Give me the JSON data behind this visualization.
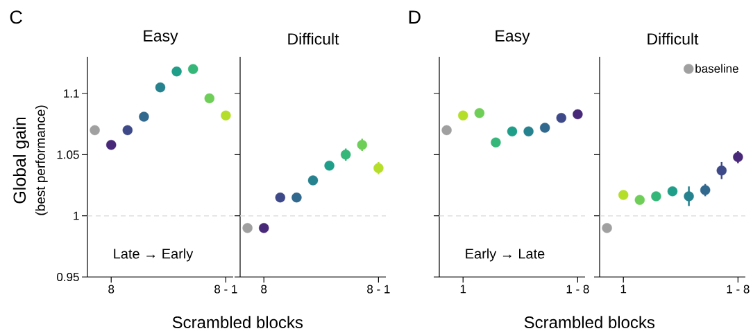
{
  "chart_data": [
    {
      "type": "scatter",
      "title": "Easy",
      "xlabel": "Scrambled blocks",
      "ylabel": "Global gain",
      "annotations": [
        "C",
        "Late → Early",
        "(best performance)"
      ],
      "categories": [
        null,
        "8",
        null,
        null,
        null,
        null,
        null,
        null,
        "8 - 1"
      ],
      "ylim": [
        0.95,
        1.13
      ],
      "yticks": [
        0.95,
        1,
        1.05,
        1.1
      ],
      "ref_lines": [
        {
          "axis": "y",
          "value": 1,
          "color": "#dddddd",
          "line_style": "dashed"
        }
      ],
      "series": [
        {
          "color": "#a0a0a0",
          "values": [
            1.07,
            null,
            null,
            null,
            null,
            null,
            null,
            null,
            null
          ]
        },
        {
          "colors": [
            "#482878",
            "#482878",
            "#3e4989",
            "#31688e",
            "#26828e",
            "#1f9e89",
            "#35b779",
            "#6ece58",
            "#b5de2b"
          ],
          "values": [
            null,
            1.058,
            1.07,
            1.081,
            1.105,
            1.118,
            1.12,
            1.096,
            1.082
          ]
        }
      ]
    },
    {
      "type": "scatter",
      "title": "Difficult",
      "categories": [
        null,
        "8",
        null,
        null,
        null,
        null,
        null,
        null,
        "8 - 1"
      ],
      "ylim": [
        0.95,
        1.13
      ],
      "yticks": [
        0.95,
        1,
        1.05,
        1.1
      ],
      "tick_labels": "x",
      "ref_lines": [
        {
          "axis": "y",
          "value": 1,
          "color": "#dddddd",
          "line_style": "dashed"
        }
      ],
      "series": [
        {
          "color": "#a0a0a0",
          "values": [
            0.99,
            null,
            null,
            null,
            null,
            null,
            null,
            null,
            null
          ]
        },
        {
          "colors": [
            "#482878",
            "#482878",
            "#3e4989",
            "#31688e",
            "#26828e",
            "#1f9e89",
            "#35b779",
            "#6ece58",
            "#b5de2b"
          ],
          "values": [
            null,
            0.99,
            1.015,
            1.015,
            1.029,
            1.041,
            1.05,
            1.058,
            1.039
          ],
          "errors": [
            null,
            null,
            null,
            null,
            null,
            null,
            0.005,
            0.005,
            0.005
          ]
        }
      ]
    },
    {
      "type": "scatter",
      "title": "Easy",
      "xlabel": "Scrambled blocks",
      "annotations": [
        "D",
        "Early → Late"
      ],
      "categories": [
        null,
        "1",
        null,
        null,
        null,
        null,
        null,
        null,
        "1 - 8"
      ],
      "ylim": [
        0.95,
        1.13
      ],
      "yticks": [
        0.95,
        1,
        1.05,
        1.1
      ],
      "tick_labels": "x",
      "ref_lines": [
        {
          "axis": "y",
          "value": 1,
          "color": "#dddddd",
          "line_style": "dashed"
        }
      ],
      "series": [
        {
          "color": "#a0a0a0",
          "values": [
            1.07,
            null,
            null,
            null,
            null,
            null,
            null,
            null,
            null
          ]
        },
        {
          "colors": [
            "#b5de2b",
            "#b5de2b",
            "#6ece58",
            "#35b779",
            "#1f9e89",
            "#26828e",
            "#31688e",
            "#3e4989",
            "#482878"
          ],
          "values": [
            null,
            1.082,
            1.084,
            1.06,
            1.069,
            1.069,
            1.072,
            1.08,
            1.083
          ]
        }
      ]
    },
    {
      "type": "scatter",
      "title": "Difficult",
      "categories": [
        null,
        "1",
        null,
        null,
        null,
        null,
        null,
        null,
        "1 - 8"
      ],
      "ylim": [
        0.95,
        1.13
      ],
      "yticks": [
        0.95,
        1,
        1.05,
        1.1
      ],
      "tick_labels": "x",
      "legend": "top right",
      "ref_lines": [
        {
          "axis": "y",
          "value": 1,
          "color": "#dddddd",
          "line_style": "dashed"
        }
      ],
      "series": [
        {
          "name": "baseline",
          "color": "#a0a0a0",
          "values": [
            0.99,
            null,
            null,
            null,
            null,
            null,
            null,
            null,
            null
          ]
        },
        {
          "colors": [
            "#b5de2b",
            "#b5de2b",
            "#6ece58",
            "#35b779",
            "#1f9e89",
            "#26828e",
            "#31688e",
            "#3e4989",
            "#482878"
          ],
          "values": [
            null,
            1.017,
            1.013,
            1.016,
            1.02,
            1.016,
            1.021,
            1.037,
            1.048
          ],
          "errors": [
            null,
            null,
            null,
            null,
            null,
            0.008,
            0.005,
            0.007,
            0.005
          ]
        }
      ]
    }
  ]
}
